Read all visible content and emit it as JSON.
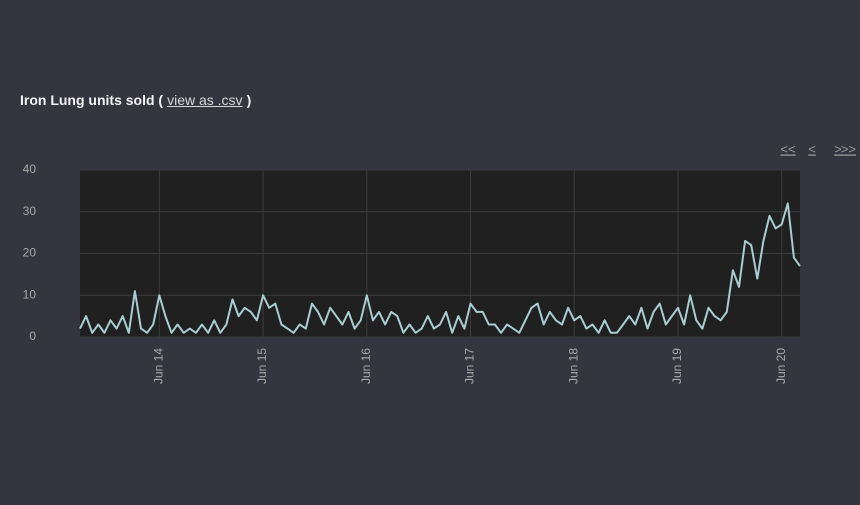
{
  "chart_data": {
    "type": "line",
    "title": "Iron Lung units sold (",
    "link": "view as .csv",
    "title_close": ")",
    "nav": [
      "<<",
      "<",
      ">",
      ">>"
    ],
    "categories": [
      null,
      null,
      null,
      null,
      null,
      null,
      null,
      null,
      null,
      null,
      null,
      null,
      null,
      "Jun 14",
      null,
      null,
      null,
      null,
      null,
      null,
      null,
      null,
      null,
      null,
      null,
      null,
      null,
      null,
      null,
      null,
      "Jun 15",
      null,
      null,
      null,
      null,
      null,
      null,
      null,
      null,
      null,
      null,
      null,
      null,
      null,
      null,
      null,
      null,
      "Jun 16",
      null,
      null,
      null,
      null,
      null,
      null,
      null,
      null,
      null,
      null,
      null,
      null,
      null,
      null,
      null,
      null,
      "Jun 17",
      null,
      null,
      null,
      null,
      null,
      null,
      null,
      null,
      null,
      null,
      null,
      null,
      null,
      null,
      null,
      null,
      "Jun 18",
      null,
      null,
      null,
      null,
      null,
      null,
      null,
      null,
      null,
      null,
      null,
      null,
      null,
      null,
      null,
      null,
      "Jun 19",
      null,
      null,
      null,
      null,
      null,
      null,
      null,
      null,
      null,
      null,
      null,
      null,
      null,
      null,
      null,
      null,
      "Jun 20",
      null,
      null,
      null
    ],
    "values": [
      2,
      5,
      1,
      3,
      1,
      4,
      2,
      5,
      1,
      11,
      2,
      1,
      3,
      10,
      5,
      1,
      3,
      1,
      2,
      1,
      3,
      1,
      4,
      1,
      3,
      9,
      5,
      7,
      6,
      4,
      10,
      7,
      8,
      3,
      2,
      1,
      3,
      2,
      8,
      6,
      3,
      7,
      5,
      3,
      6,
      2,
      4,
      10,
      4,
      6,
      3,
      6,
      5,
      1,
      3,
      1,
      2,
      5,
      2,
      3,
      6,
      1,
      5,
      2,
      8,
      6,
      6,
      3,
      3,
      1,
      3,
      2,
      1,
      4,
      7,
      8,
      3,
      6,
      4,
      3,
      7,
      4,
      5,
      2,
      3,
      1,
      4,
      1,
      1,
      3,
      5,
      3,
      7,
      2,
      6,
      8,
      3,
      5,
      7,
      3,
      10,
      4,
      2,
      7,
      5,
      4,
      6,
      16,
      12,
      23,
      22,
      14,
      23,
      29,
      26,
      27,
      32,
      19,
      17
    ],
    "color": "#a9cdd0",
    "ylim": [
      0,
      40
    ],
    "yticks": [
      0,
      10,
      20,
      30,
      40
    ],
    "grid": true
  }
}
